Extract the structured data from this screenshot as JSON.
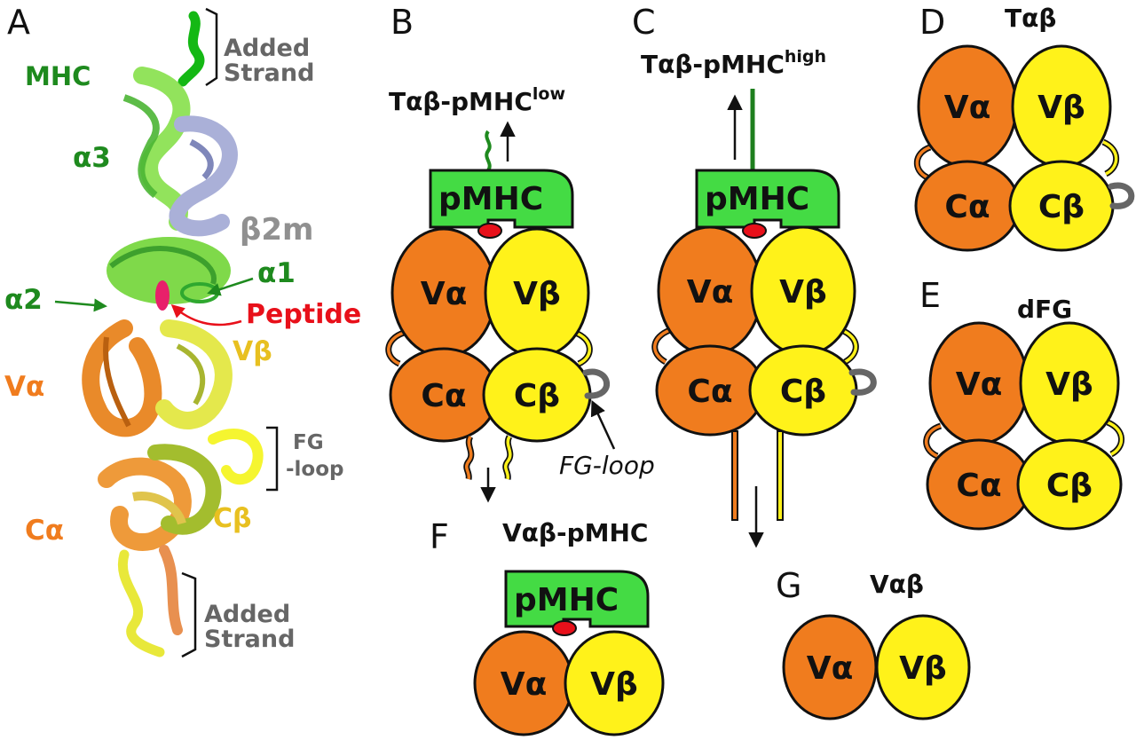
{
  "colors": {
    "orange": "#F07C1E",
    "yellow": "#FFF21A",
    "green": "#44DB44",
    "dark_green": "#1E7F1E",
    "red": "#E8101A",
    "grey": "#666666",
    "lavender": "#AAB0D8",
    "light_yellow": "#E6D84A"
  },
  "panels": {
    "A": {
      "letter": "A",
      "labels": {
        "added_strand_top": [
          "Added",
          "Strand"
        ],
        "mhc": "MHC",
        "alpha3": "α3",
        "beta2m": "β2m",
        "alpha1": "α1",
        "alpha2": "α2",
        "peptide": "Peptide",
        "vbeta": "Vβ",
        "valpha": "Vα",
        "fg_loop": [
          "FG",
          "-loop"
        ],
        "calpha": "Cα",
        "cbeta": "Cβ",
        "added_strand_bottom": [
          "Added",
          "Strand"
        ]
      }
    },
    "B": {
      "letter": "B",
      "title": "Tαβ-pMHC",
      "title_sup": "low",
      "pmhc": "pMHC",
      "va": "Vα",
      "vb": "Vβ",
      "ca": "Cα",
      "cb": "Cβ",
      "fg_loop_label": "FG-loop"
    },
    "C": {
      "letter": "C",
      "title": "Tαβ-pMHC",
      "title_sup": "high",
      "pmhc": "pMHC",
      "va": "Vα",
      "vb": "Vβ",
      "ca": "Cα",
      "cb": "Cβ"
    },
    "D": {
      "letter": "D",
      "title": "Tαβ",
      "va": "Vα",
      "vb": "Vβ",
      "ca": "Cα",
      "cb": "Cβ"
    },
    "E": {
      "letter": "E",
      "title": "dFG",
      "va": "Vα",
      "vb": "Vβ",
      "ca": "Cα",
      "cb": "Cβ"
    },
    "F": {
      "letter": "F",
      "title": "Vαβ-pMHC",
      "pmhc": "pMHC",
      "va": "Vα",
      "vb": "Vβ"
    },
    "G": {
      "letter": "G",
      "title": "Vαβ",
      "va": "Vα",
      "vb": "Vβ"
    }
  }
}
